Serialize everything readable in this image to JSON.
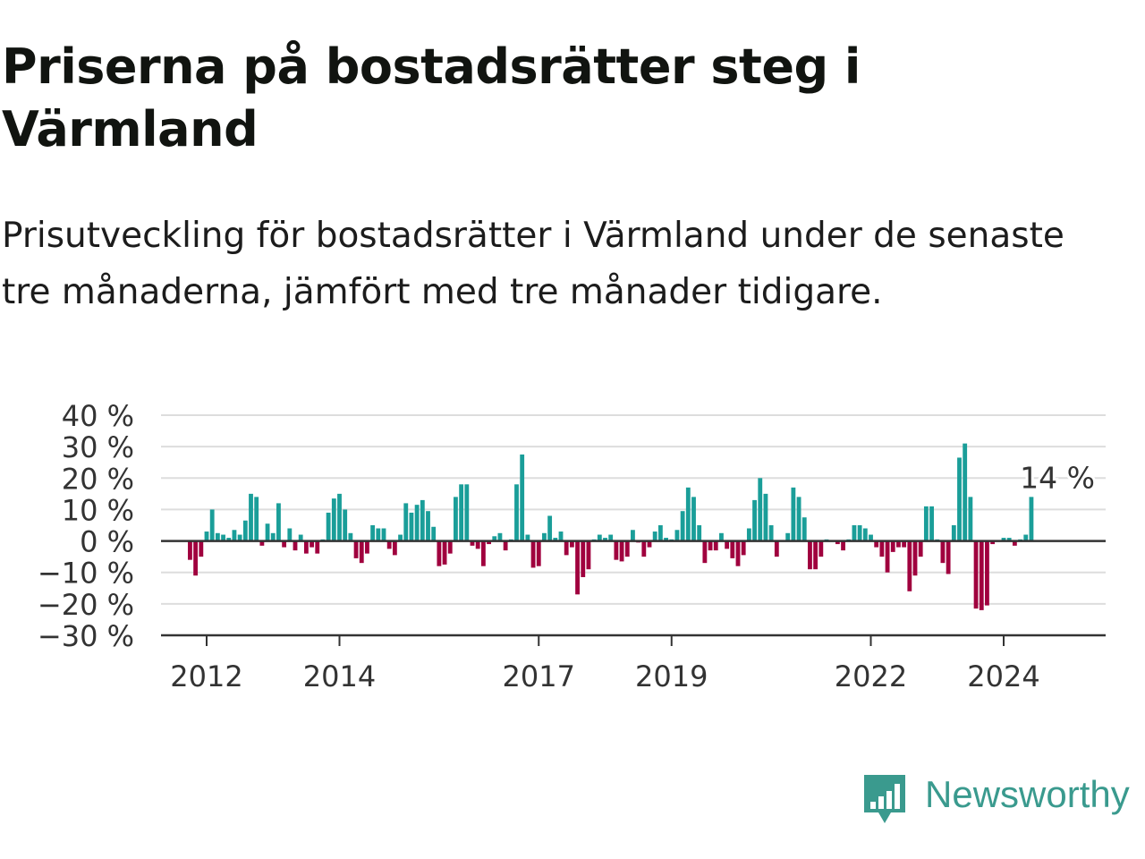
{
  "title": "Priserna på bostadsrätter steg i Värmland",
  "subtitle": "Prisutveckling för bostadsrätter i Värmland under de senaste tre månaderna, jämfört med tre månader tidigare.",
  "brand": {
    "name": "Newsworthy",
    "color": "#3a9a8e",
    "icon": "newsworthy-logo-icon"
  },
  "colors": {
    "positive": "#1a9e99",
    "negative": "#a0003e",
    "gridline": "#dddddd",
    "zeroline": "#333333"
  },
  "chart_data": {
    "type": "bar",
    "title": "Priserna på bostadsrätter steg i Värmland",
    "ylim": [
      -30,
      40
    ],
    "yticks": [
      40,
      30,
      20,
      10,
      0,
      -10,
      -20,
      -30
    ],
    "ytick_labels": [
      "40 %",
      "30 %",
      "20 %",
      "10 %",
      "0 %",
      "−10 %",
      "−20 %",
      "−30 %"
    ],
    "xticks": [
      "2012",
      "2014",
      "2017",
      "2019",
      "2022",
      "2024"
    ],
    "xtick_positions": [
      2012,
      2014,
      2017,
      2019,
      2022,
      2024
    ],
    "x_start": 2011.75,
    "months_per_bar": 1,
    "grid": true,
    "legend": "none",
    "annotation": {
      "label": "14 %",
      "x": 2024.83,
      "value": 14
    },
    "values": [
      -6,
      -11,
      -5,
      3,
      10,
      2.5,
      2,
      1,
      3.5,
      2,
      6.5,
      15,
      14,
      -1.5,
      5.5,
      2.5,
      12,
      -2,
      4,
      -3,
      2,
      -4,
      -2,
      -4,
      0.5,
      9,
      13.5,
      15,
      10,
      2.5,
      -5.5,
      -7,
      -4,
      5,
      4,
      4,
      -2.5,
      -4.5,
      2,
      12,
      9,
      11.5,
      13,
      9.5,
      4.5,
      -8,
      -7.5,
      -4,
      14,
      18,
      18,
      -1.5,
      -2.5,
      -8,
      -1,
      1.5,
      2.5,
      -3,
      0.5,
      18,
      27.5,
      2,
      -8.5,
      -8,
      2.5,
      8,
      1,
      3,
      -4.5,
      -2,
      -17,
      -11.5,
      -9,
      0.5,
      2,
      1,
      2,
      -6,
      -6.5,
      -5,
      3.5,
      -0.5,
      -5,
      -2,
      3,
      5,
      1,
      0.5,
      3.5,
      9.5,
      17,
      14,
      5,
      -7,
      -3,
      -3,
      2.5,
      -2.5,
      -5.5,
      -8,
      -4.5,
      4,
      13,
      20,
      15,
      5,
      -5,
      0,
      2.5,
      17,
      14,
      7.5,
      -9,
      -9,
      -5,
      0.5,
      0,
      -1,
      -3,
      0.5,
      5,
      5,
      4,
      2,
      -2,
      -5,
      -10,
      -3.5,
      -2,
      -2,
      -16,
      -11,
      -5,
      11,
      11,
      0.5,
      -7,
      -10.5,
      5,
      26.5,
      31,
      14,
      -21.5,
      -22,
      -20.5,
      -1,
      0,
      1,
      1,
      -1.5,
      0.5,
      2,
      14
    ]
  }
}
